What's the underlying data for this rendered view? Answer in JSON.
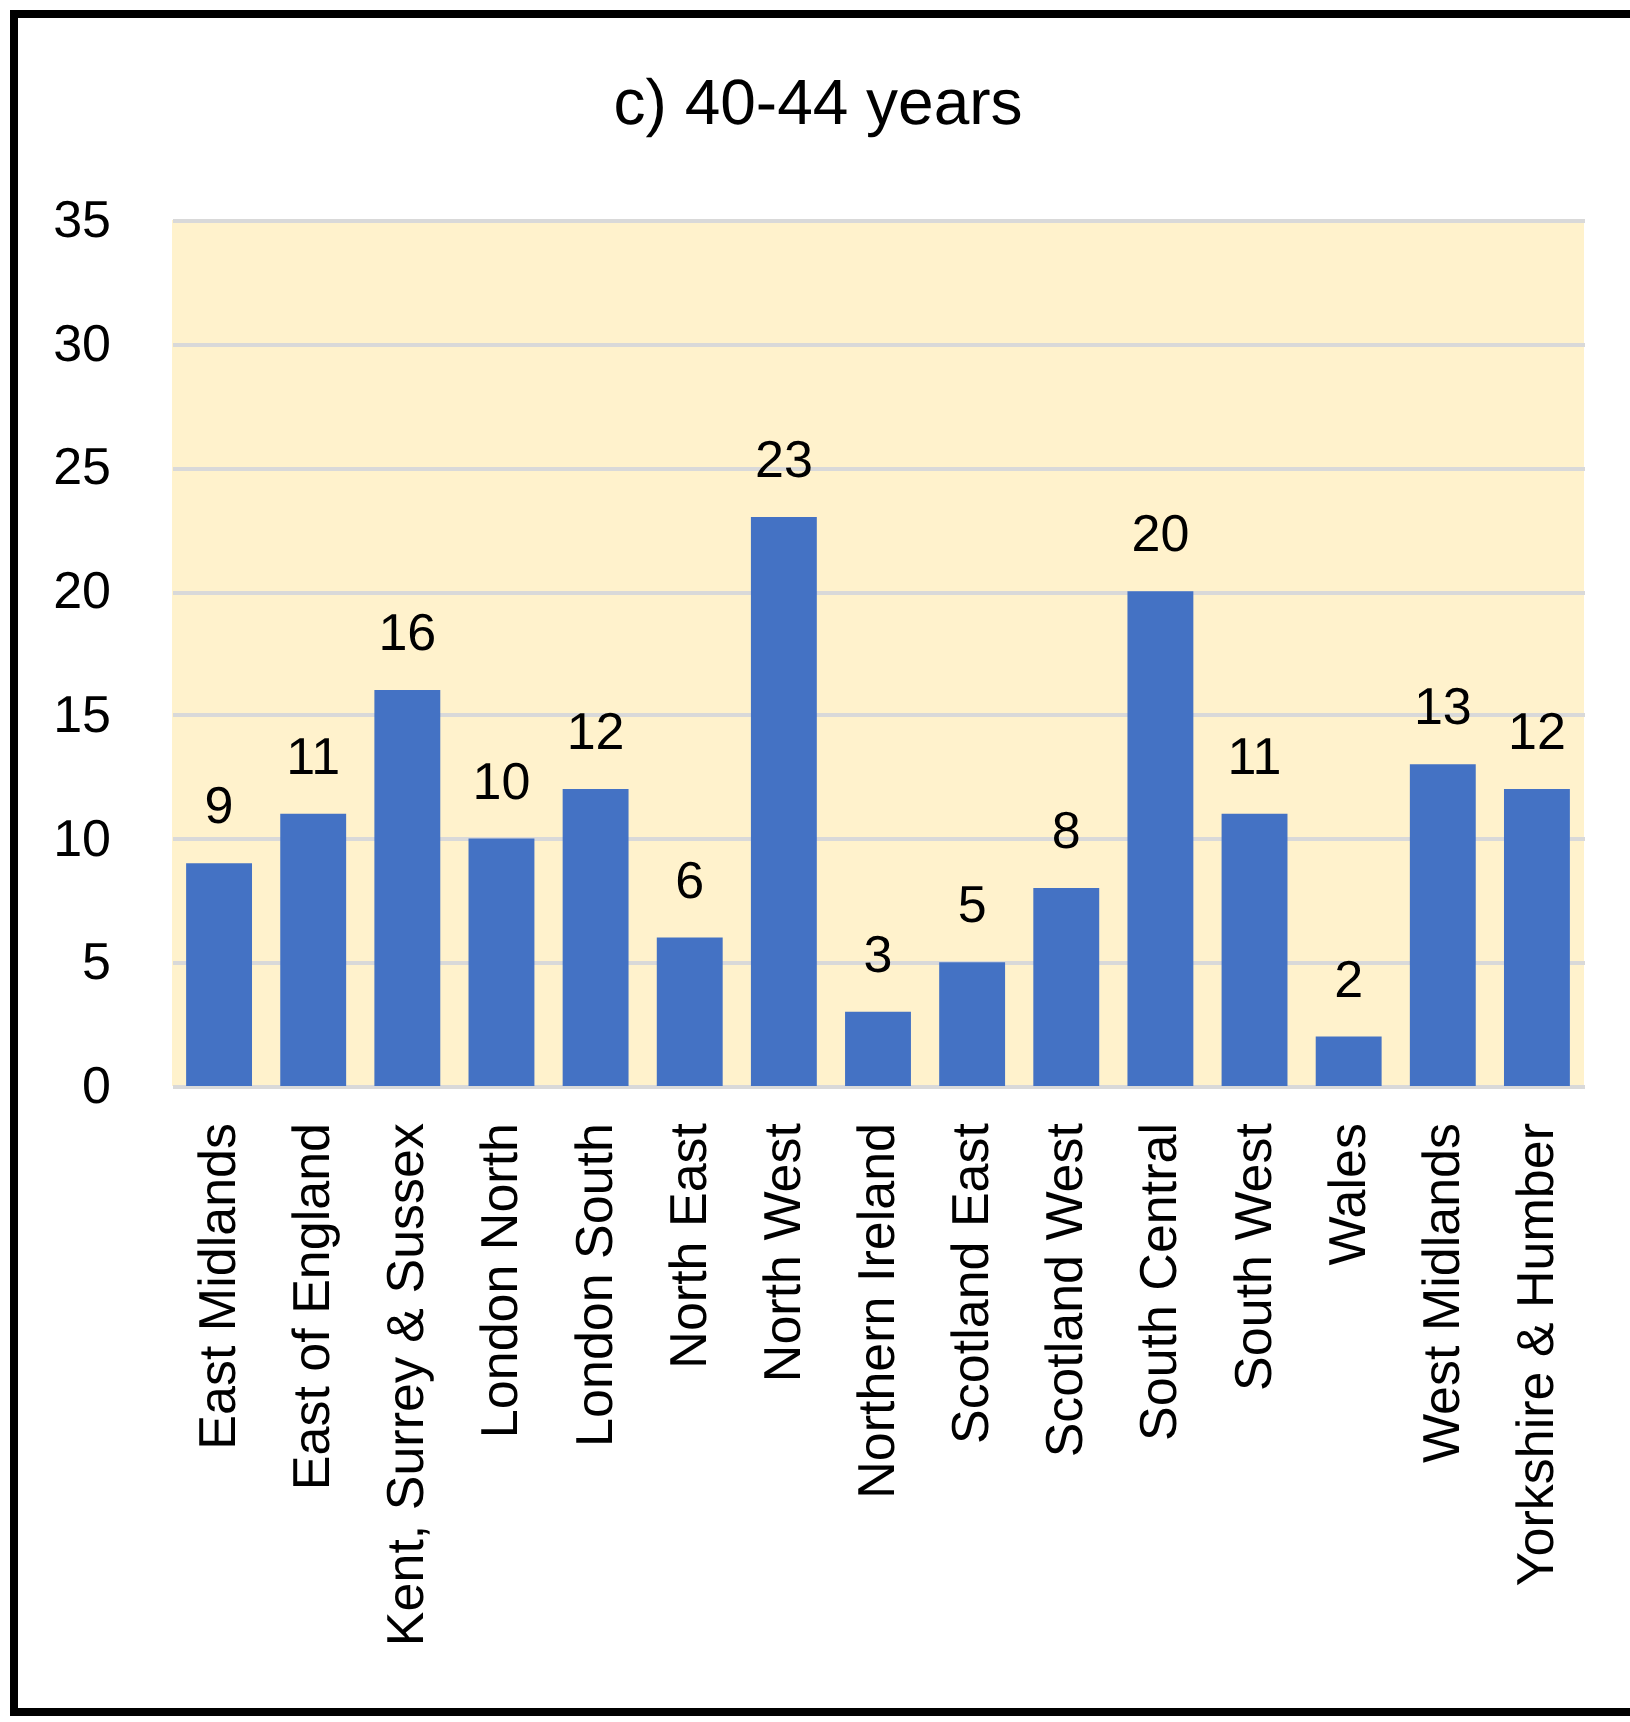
{
  "chart_data": {
    "type": "bar",
    "title": "c) 40-44 years",
    "categories": [
      "East Midlands",
      "East of England",
      "Kent, Surrey & Sussex",
      "London North",
      "London South",
      "North East",
      "North West",
      "Northern Ireland",
      "Scotland East",
      "Scotland West",
      "South Central",
      "South West",
      "Wales",
      "West Midlands",
      "Yorkshire & Humber"
    ],
    "values": [
      9,
      11,
      16,
      10,
      12,
      6,
      23,
      3,
      5,
      8,
      20,
      11,
      2,
      13,
      12
    ],
    "color": "#4472c4",
    "ylim": [
      0,
      35
    ],
    "yticks": [
      0,
      5,
      10,
      15,
      20,
      25,
      30,
      35
    ],
    "grid": "y",
    "data_labels": true
  }
}
